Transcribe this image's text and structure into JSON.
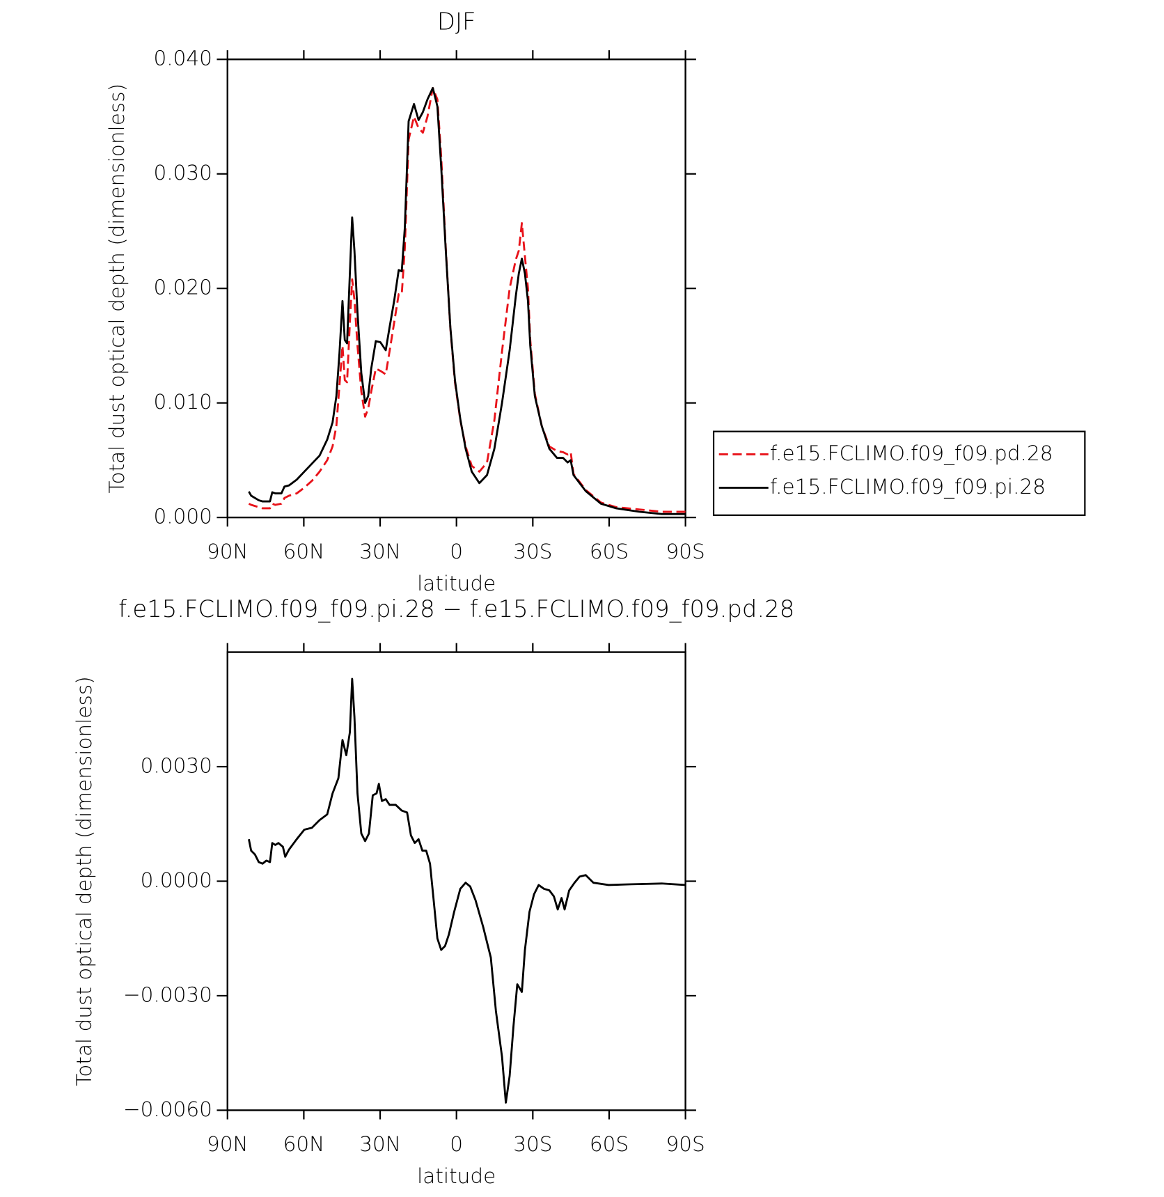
{
  "chart_data": [
    {
      "type": "line",
      "title": "DJF",
      "x_label": "latitude",
      "y_label": "Total dust optical depth (dimensionless)",
      "x": [
        81.6,
        80.7,
        77.7,
        76.2,
        73.3,
        72.4,
        71.2,
        68.8,
        67.6,
        65.8,
        62.8,
        59.8,
        56.8,
        53.8,
        50.8,
        48.7,
        47.2,
        46.0,
        44.8,
        43.9,
        43.0,
        41.9,
        41.0,
        40.1,
        38.9,
        37.4,
        35.9,
        34.7,
        33.5,
        31.7,
        29.9,
        27.8,
        26.3,
        24.5,
        22.7,
        21.5,
        20.3,
        18.8,
        16.7,
        14.9,
        13.2,
        11.4,
        9.3,
        7.5,
        6.0,
        4.2,
        2.4,
        0.6,
        -1.5,
        -3.6,
        -6.0,
        -9.0,
        -12.0,
        -14.9,
        -17.9,
        -20.9,
        -23.3,
        -24.5,
        -25.7,
        -26.9,
        -28.1,
        -29.0,
        -30.8,
        -33.5,
        -36.5,
        -39.5,
        -41.9,
        -43.7,
        -44.9,
        -46.0,
        -50.8,
        -56.8,
        -62.8,
        -71.8,
        -80.7,
        -90
      ],
      "series": [
        {
          "name": "f.e15.FCLIMO.f09_f09.pd.28",
          "color": "#e8131a",
          "line_style": "dashed",
          "values": [
            0.0012,
            0.0011,
            0.0009,
            0.0008,
            0.0008,
            0.0012,
            0.0011,
            0.0012,
            0.0017,
            0.0019,
            0.0021,
            0.0026,
            0.0032,
            0.004,
            0.005,
            0.0062,
            0.008,
            0.0115,
            0.015,
            0.012,
            0.0118,
            0.017,
            0.0208,
            0.019,
            0.015,
            0.011,
            0.0088,
            0.0095,
            0.011,
            0.013,
            0.0128,
            0.0125,
            0.0145,
            0.017,
            0.0195,
            0.0195,
            0.0235,
            0.033,
            0.035,
            0.034,
            0.0336,
            0.035,
            0.0375,
            0.0365,
            0.0315,
            0.0235,
            0.0165,
            0.0118,
            0.0085,
            0.0062,
            0.0045,
            0.004,
            0.0048,
            0.0085,
            0.0145,
            0.02,
            0.0225,
            0.0233,
            0.0257,
            0.0228,
            0.02,
            0.0155,
            0.0108,
            0.008,
            0.0062,
            0.0058,
            0.0057,
            0.0055,
            0.0057,
            0.0038,
            0.0024,
            0.0013,
            0.0009,
            0.0007,
            0.0005,
            0.0005
          ]
        },
        {
          "name": "f.e15.FCLIMO.f09_f09.pi.28",
          "color": "#000000",
          "line_style": "solid",
          "values": [
            0.00226,
            0.0019,
            0.0015,
            0.0014,
            0.0014,
            0.0022,
            0.0021,
            0.0021,
            0.0027,
            0.0028,
            0.0033,
            0.004,
            0.0047,
            0.0054,
            0.0068,
            0.0083,
            0.0106,
            0.0143,
            0.0189,
            0.0155,
            0.0152,
            0.0213,
            0.0262,
            0.0233,
            0.0179,
            0.0126,
            0.01,
            0.0106,
            0.013,
            0.0154,
            0.0153,
            0.0146,
            0.0166,
            0.0189,
            0.0216,
            0.0215,
            0.0253,
            0.0346,
            0.0361,
            0.0347,
            0.0354,
            0.0365,
            0.0375,
            0.0359,
            0.0306,
            0.0233,
            0.0166,
            0.012,
            0.0086,
            0.006,
            0.004,
            0.003,
            0.0037,
            0.006,
            0.01,
            0.0146,
            0.0193,
            0.0213,
            0.0226,
            0.0213,
            0.0189,
            0.015,
            0.0106,
            0.008,
            0.006,
            0.0052,
            0.0052,
            0.0048,
            0.005,
            0.0037,
            0.0023,
            0.0012,
            0.0008,
            0.0005,
            0.0003,
            0.0003
          ]
        }
      ],
      "xlim": [
        90,
        -90
      ],
      "xticks": [
        {
          "value": 90,
          "label": "90N"
        },
        {
          "value": 60,
          "label": "60N"
        },
        {
          "value": 30,
          "label": "30N"
        },
        0,
        {
          "value": -30,
          "label": "30S"
        },
        {
          "value": -60,
          "label": "60S"
        },
        {
          "value": -90,
          "label": "90S"
        }
      ],
      "ylim": [
        0,
        0.04
      ],
      "yticks": [
        {
          "value": 0,
          "label": "0.000"
        },
        {
          "value": 0.01,
          "label": "0.010"
        },
        {
          "value": 0.02,
          "label": "0.020"
        },
        {
          "value": 0.03,
          "label": "0.030"
        },
        {
          "value": 0.04,
          "label": "0.040"
        }
      ],
      "legend": "right"
    },
    {
      "type": "line",
      "title": "f.e15.FCLIMO.f09_f09.pi.28 − f.e15.FCLIMO.f09_f09.pd.28",
      "x_label": "latitude",
      "y_label": "Total dust optical depth (dimensionless)",
      "x": [
        81.6,
        80.7,
        79.2,
        77.7,
        76.2,
        74.7,
        73.3,
        72.4,
        71.2,
        70.0,
        68.2,
        67.3,
        65.8,
        62.8,
        59.8,
        56.8,
        53.8,
        50.8,
        48.7,
        46.4,
        44.8,
        43.3,
        41.9,
        41.0,
        40.1,
        38.9,
        37.4,
        35.9,
        34.4,
        32.9,
        31.4,
        30.5,
        29.3,
        27.8,
        26.3,
        23.9,
        21.5,
        19.4,
        17.9,
        16.4,
        14.9,
        13.4,
        11.9,
        10.4,
        8.9,
        7.5,
        6.0,
        4.5,
        3.0,
        0.9,
        -1.5,
        -3.6,
        -5.4,
        -7.5,
        -10.5,
        -13.5,
        -15.5,
        -17.9,
        -19.4,
        -20.9,
        -22.4,
        -23.9,
        -25.7,
        -26.9,
        -28.7,
        -30.5,
        -32.3,
        -34.4,
        -36.5,
        -38.3,
        -39.8,
        -41.3,
        -42.5,
        -44.3,
        -46.4,
        -48.4,
        -50.8,
        -53.8,
        -59.8,
        -68.8,
        -80.7,
        -90
      ],
      "values": [
        0.0011,
        0.0008,
        0.0007,
        0.0005,
        0.00046,
        0.00054,
        0.0005,
        0.001,
        0.00095,
        0.001,
        0.0009,
        0.00064,
        0.00083,
        0.0011,
        0.00135,
        0.0014,
        0.0016,
        0.00175,
        0.0023,
        0.0027,
        0.0037,
        0.0033,
        0.0039,
        0.0053,
        0.0043,
        0.0023,
        0.00125,
        0.00105,
        0.00125,
        0.00225,
        0.0023,
        0.00255,
        0.0021,
        0.00215,
        0.002,
        0.002,
        0.00185,
        0.0018,
        0.0012,
        0.001,
        0.0011,
        0.0008,
        0.0008,
        0.00046,
        -0.00054,
        -0.0015,
        -0.0018,
        -0.0017,
        -0.0014,
        -0.0008,
        -0.0002,
        -4e-05,
        -0.00014,
        -0.0005,
        -0.0012,
        -0.002,
        -0.0034,
        -0.0046,
        -0.0058,
        -0.0051,
        -0.0038,
        -0.0027,
        -0.0029,
        -0.0018,
        -0.0008,
        -0.00034,
        -0.0001,
        -0.0002,
        -0.00024,
        -0.0004,
        -0.00074,
        -0.00044,
        -0.00074,
        -0.00024,
        -4e-05,
        0.00012,
        0.00016,
        -4e-05,
        -0.0001,
        -8e-05,
        -6e-05,
        -0.0001
      ],
      "color": "#000000",
      "xlim": [
        90,
        -90
      ],
      "xticks": [
        {
          "value": 90,
          "label": "90N"
        },
        {
          "value": 60,
          "label": "60N"
        },
        {
          "value": 30,
          "label": "30N"
        },
        0,
        {
          "value": -30,
          "label": "30S"
        },
        {
          "value": -60,
          "label": "60S"
        },
        {
          "value": -90,
          "label": "90S"
        }
      ],
      "ylim": [
        -0.006,
        0.006
      ],
      "yticks": [
        {
          "value": -0.006,
          "label": "−0.0060"
        },
        {
          "value": -0.003,
          "label": "−0.0030"
        },
        {
          "value": 0,
          "label": "0.0000"
        },
        {
          "value": 0.003,
          "label": "0.0030"
        }
      ]
    }
  ]
}
